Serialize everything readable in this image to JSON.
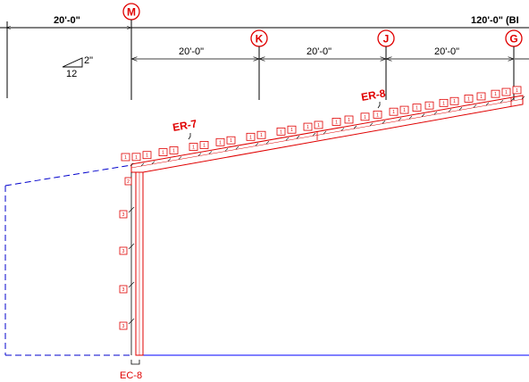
{
  "colors": {
    "red": "#e00000",
    "black": "#000000",
    "blue": "#0000ff",
    "blue_dashed": "#0000cc"
  },
  "dimensions": {
    "top_left": "20'-0\"",
    "top_right": "120'-0\" (BI",
    "bay_1": "20'-0\"",
    "bay_2": "20'-0\"",
    "bay_3": "20'-0\""
  },
  "grid_lines": [
    "M",
    "K",
    "J",
    "G"
  ],
  "slope": {
    "rise": "2\"",
    "run": "12"
  },
  "rafter_marks": [
    "ER-7",
    "ER-8"
  ],
  "column_mark": "EC-8",
  "tag_labels": {
    "rafter": "1",
    "column_top": "2",
    "column": "3"
  }
}
